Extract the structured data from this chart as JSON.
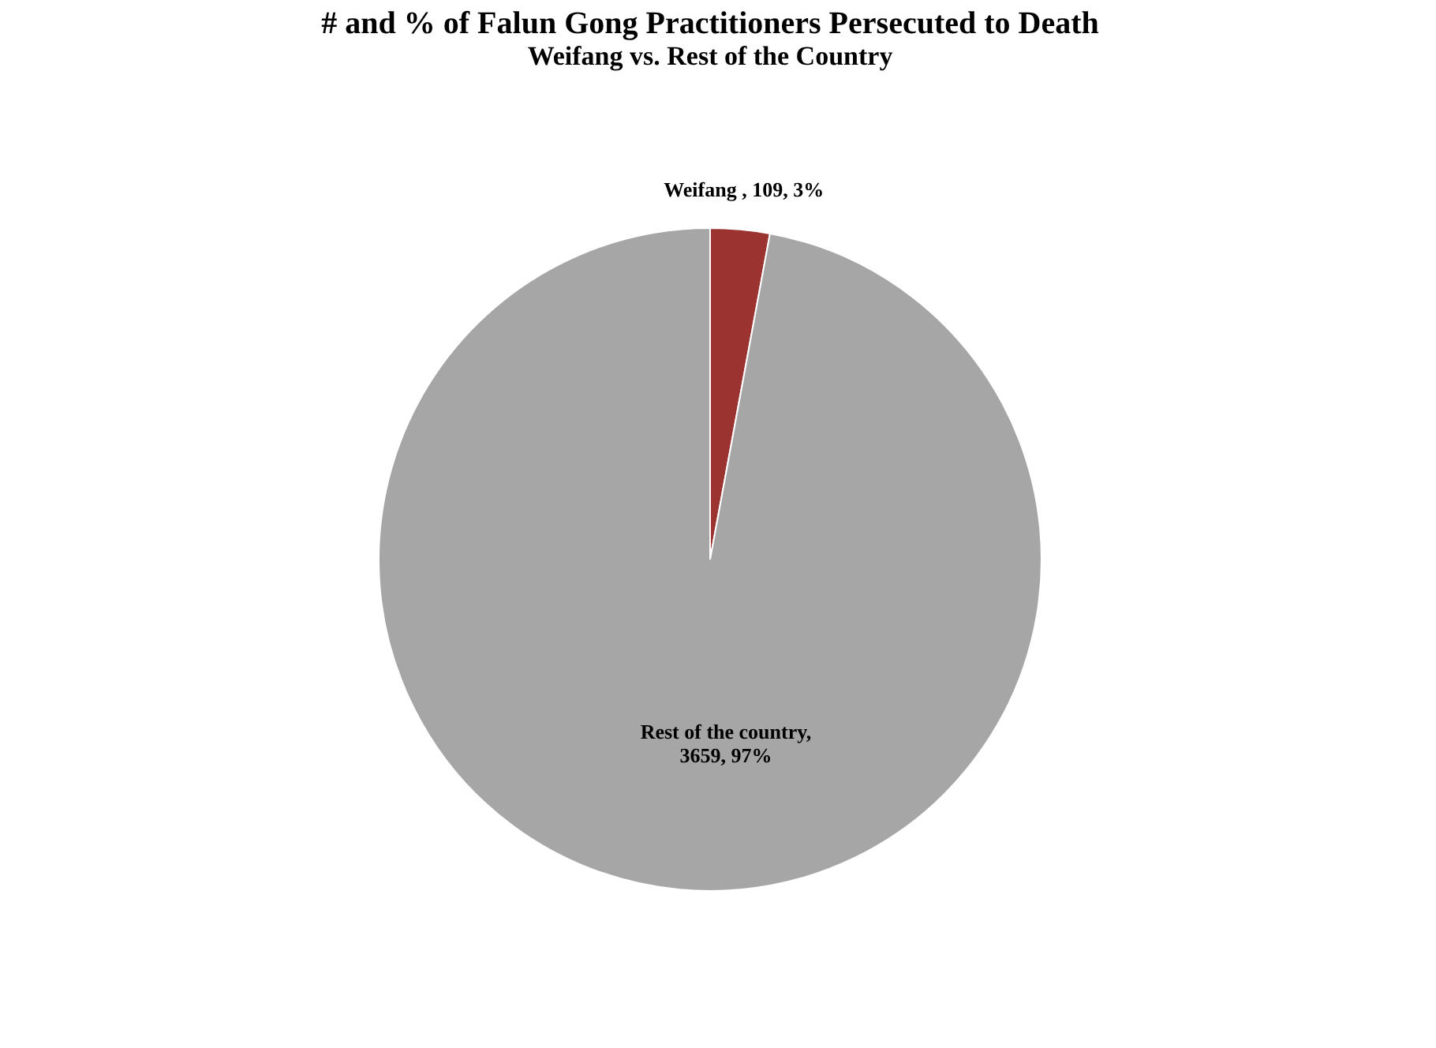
{
  "chart_data": {
    "type": "pie",
    "title": "# and % of Falun Gong Practitioners Persecuted to Death",
    "subtitle": "Weifang vs. Rest of the Country",
    "categories": [
      "Weifang",
      "Rest of the country"
    ],
    "values": [
      109,
      3659
    ],
    "colors": [
      "#9b3330",
      "#a6a6a6"
    ],
    "value_labels": [
      ", 109, 3%",
      ",\n3659, 97%"
    ],
    "legend": false
  }
}
